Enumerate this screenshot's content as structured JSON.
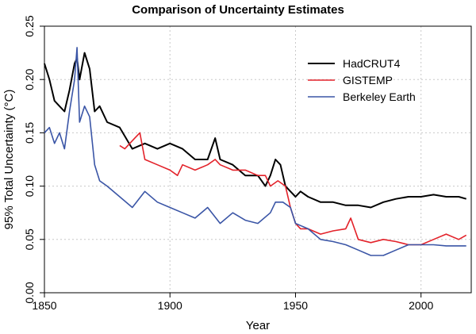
{
  "chart_data": {
    "type": "line",
    "title": "Comparison of Uncertainty Estimates",
    "xlabel": "Year",
    "ylabel": "95% Total Uncertainty (°C)",
    "xlim": [
      1850,
      2020
    ],
    "ylim": [
      0,
      0.25
    ],
    "xticks": [
      1850,
      1900,
      1950,
      2000
    ],
    "yticks": [
      0.0,
      0.05,
      0.1,
      0.15,
      0.2,
      0.25
    ],
    "xtick_labels": [
      "1850",
      "1900",
      "1950",
      "2000"
    ],
    "ytick_labels": [
      "0.00",
      "0.05",
      "0.10",
      "0.15",
      "0.20",
      "0.25"
    ],
    "grid": true,
    "legend_position": "top-right",
    "series": [
      {
        "name": "HadCRUT4",
        "color": "#000000",
        "x": [
          1850,
          1852,
          1854,
          1856,
          1858,
          1860,
          1862,
          1863,
          1864,
          1866,
          1868,
          1870,
          1872,
          1875,
          1880,
          1885,
          1890,
          1895,
          1900,
          1905,
          1910,
          1915,
          1918,
          1920,
          1925,
          1930,
          1935,
          1938,
          1940,
          1942,
          1944,
          1946,
          1948,
          1950,
          1952,
          1955,
          1960,
          1965,
          1970,
          1975,
          1980,
          1985,
          1990,
          1995,
          2000,
          2005,
          2010,
          2015,
          2018
        ],
        "y": [
          0.215,
          0.2,
          0.18,
          0.175,
          0.17,
          0.19,
          0.215,
          0.22,
          0.2,
          0.225,
          0.21,
          0.17,
          0.175,
          0.16,
          0.155,
          0.135,
          0.14,
          0.135,
          0.14,
          0.135,
          0.125,
          0.125,
          0.145,
          0.125,
          0.12,
          0.11,
          0.11,
          0.1,
          0.11,
          0.125,
          0.12,
          0.1,
          0.095,
          0.09,
          0.095,
          0.09,
          0.085,
          0.085,
          0.082,
          0.082,
          0.08,
          0.085,
          0.088,
          0.09,
          0.09,
          0.092,
          0.09,
          0.09,
          0.088
        ]
      },
      {
        "name": "GISTEMP",
        "color": "#e3222a",
        "x": [
          1880,
          1882,
          1884,
          1886,
          1888,
          1890,
          1895,
          1900,
          1903,
          1905,
          1910,
          1915,
          1918,
          1920,
          1925,
          1930,
          1935,
          1938,
          1940,
          1943,
          1946,
          1948,
          1950,
          1952,
          1955,
          1960,
          1965,
          1970,
          1972,
          1975,
          1980,
          1985,
          1990,
          1995,
          2000,
          2005,
          2010,
          2015,
          2018
        ],
        "y": [
          0.138,
          0.135,
          0.14,
          0.145,
          0.15,
          0.125,
          0.12,
          0.115,
          0.11,
          0.12,
          0.115,
          0.12,
          0.125,
          0.12,
          0.115,
          0.115,
          0.11,
          0.11,
          0.1,
          0.105,
          0.1,
          0.08,
          0.065,
          0.06,
          0.06,
          0.055,
          0.058,
          0.06,
          0.07,
          0.05,
          0.047,
          0.05,
          0.048,
          0.045,
          0.045,
          0.05,
          0.055,
          0.05,
          0.054
        ]
      },
      {
        "name": "Berkeley Earth",
        "color": "#3a55a6",
        "x": [
          1850,
          1852,
          1854,
          1856,
          1858,
          1860,
          1862,
          1863,
          1864,
          1866,
          1868,
          1870,
          1872,
          1875,
          1880,
          1885,
          1890,
          1895,
          1900,
          1905,
          1910,
          1915,
          1920,
          1925,
          1930,
          1935,
          1940,
          1942,
          1945,
          1948,
          1950,
          1955,
          1960,
          1965,
          1970,
          1975,
          1980,
          1985,
          1990,
          1995,
          2000,
          2005,
          2010,
          2015,
          2018
        ],
        "y": [
          0.15,
          0.155,
          0.14,
          0.15,
          0.135,
          0.17,
          0.2,
          0.23,
          0.16,
          0.175,
          0.165,
          0.12,
          0.105,
          0.1,
          0.09,
          0.08,
          0.095,
          0.085,
          0.08,
          0.075,
          0.07,
          0.08,
          0.065,
          0.075,
          0.068,
          0.065,
          0.075,
          0.085,
          0.085,
          0.08,
          0.065,
          0.06,
          0.05,
          0.048,
          0.045,
          0.04,
          0.035,
          0.035,
          0.04,
          0.045,
          0.045,
          0.045,
          0.044,
          0.044,
          0.044
        ]
      }
    ]
  }
}
